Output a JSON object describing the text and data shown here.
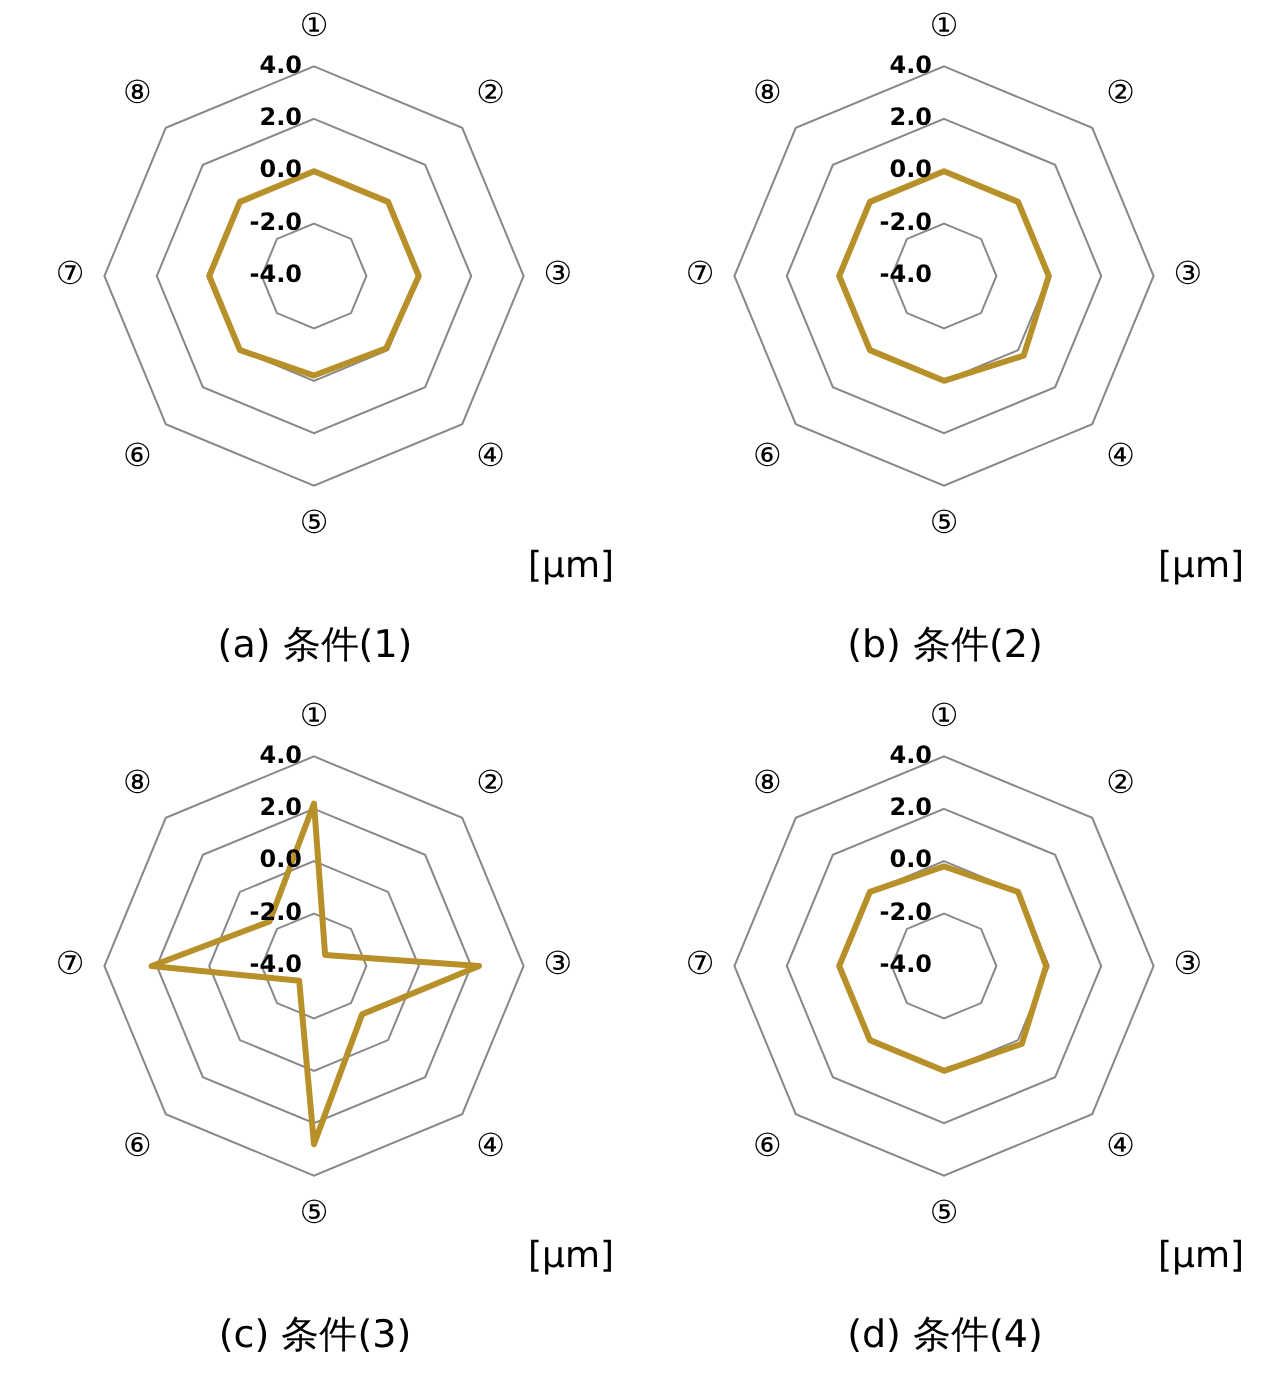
{
  "chart_data": [
    {
      "type": "radar",
      "title": "(a) 条件(1)",
      "categories": [
        "①",
        "②",
        "③",
        "④",
        "⑤",
        "⑥",
        "⑦",
        "⑧"
      ],
      "series": [
        {
          "color": "#b8902a",
          "values": [
            0.0,
            0.0,
            0.0,
            -0.1,
            -0.2,
            0.0,
            0.0,
            0.0
          ]
        }
      ],
      "ylim": [
        -4,
        4
      ],
      "yticks": [
        {
          "value": -4,
          "label": "-4.0"
        },
        {
          "value": -2,
          "label": "-2.0"
        },
        {
          "value": 0,
          "label": "0.0"
        },
        {
          "value": 2,
          "label": "2.0"
        },
        {
          "value": 4,
          "label": "4.0"
        }
      ],
      "grid": true,
      "annotations": [
        "[μm]"
      ]
    },
    {
      "type": "radar",
      "title": "(b) 条件(2)",
      "categories": [
        "①",
        "②",
        "③",
        "④",
        "⑤",
        "⑥",
        "⑦",
        "⑧"
      ],
      "series": [
        {
          "color": "#b8902a",
          "values": [
            0.0,
            0.0,
            0.0,
            0.3,
            0.0,
            0.0,
            0.0,
            0.0
          ]
        }
      ],
      "ylim": [
        -4,
        4
      ],
      "yticks": [
        {
          "value": -4,
          "label": "-4.0"
        },
        {
          "value": -2,
          "label": "-2.0"
        },
        {
          "value": 0,
          "label": "0.0"
        },
        {
          "value": 2,
          "label": "2.0"
        },
        {
          "value": 4,
          "label": "4.0"
        }
      ],
      "grid": true,
      "annotations": [
        "[μm]"
      ]
    },
    {
      "type": "radar",
      "title": "(c) 条件(3)",
      "categories": [
        "①",
        "②",
        "③",
        "④",
        "⑤",
        "⑥",
        "⑦",
        "⑧"
      ],
      "series": [
        {
          "color": "#b8902a",
          "values": [
            2.2,
            -3.4,
            2.3,
            -1.4,
            2.8,
            -3.2,
            2.2,
            -1.6
          ]
        }
      ],
      "ylim": [
        -4,
        4
      ],
      "yticks": [
        {
          "value": -4,
          "label": "-4.0"
        },
        {
          "value": -2,
          "label": "-2.0"
        },
        {
          "value": 0,
          "label": "0.0"
        },
        {
          "value": 2,
          "label": "2.0"
        },
        {
          "value": 4,
          "label": "4.0"
        }
      ],
      "grid": true,
      "annotations": [
        "[μm]"
      ]
    },
    {
      "type": "radar",
      "title": "(d) 条件(4)",
      "categories": [
        "①",
        "②",
        "③",
        "④",
        "⑤",
        "⑥",
        "⑦",
        "⑧"
      ],
      "series": [
        {
          "color": "#b8902a",
          "values": [
            -0.2,
            0.0,
            -0.1,
            0.2,
            0.0,
            0.0,
            0.0,
            0.0
          ]
        }
      ],
      "ylim": [
        -4,
        4
      ],
      "yticks": [
        {
          "value": -4,
          "label": "-4.0"
        },
        {
          "value": -2,
          "label": "-2.0"
        },
        {
          "value": 0,
          "label": "0.0"
        },
        {
          "value": 2,
          "label": "2.0"
        },
        {
          "value": 4,
          "label": "4.0"
        }
      ],
      "grid": true,
      "annotations": [
        "[μm]"
      ]
    }
  ]
}
